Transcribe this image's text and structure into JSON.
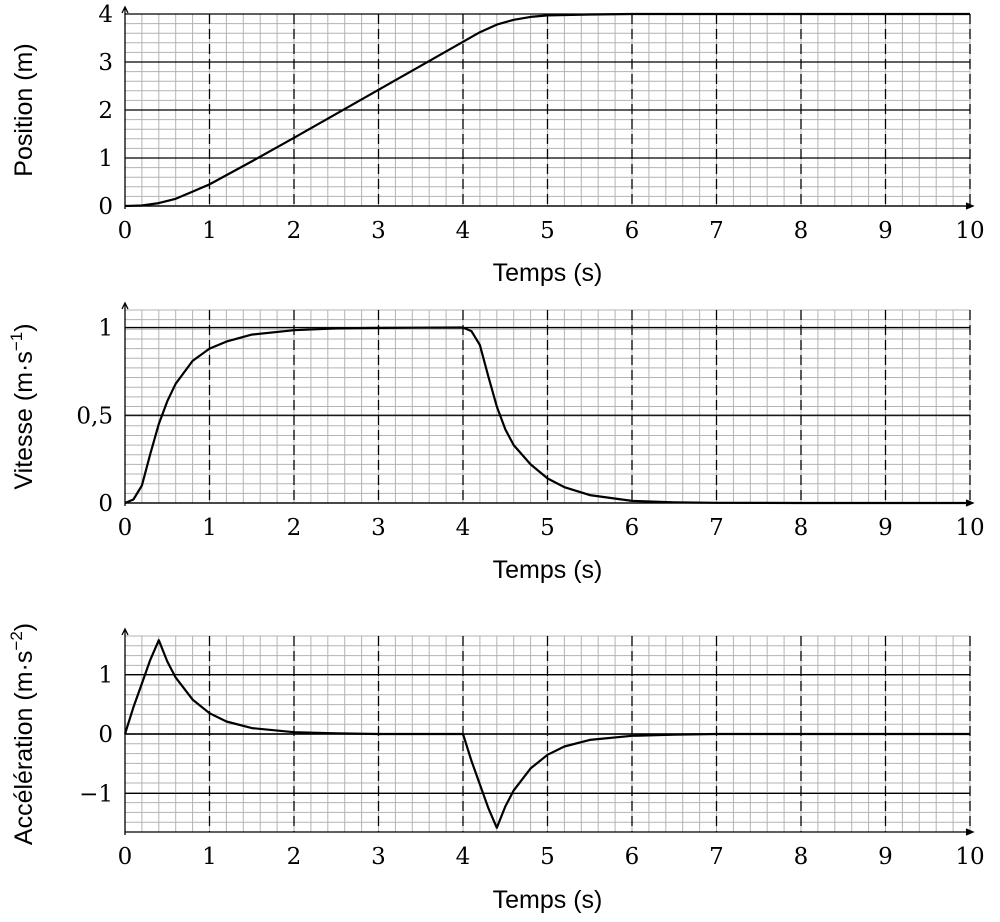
{
  "chart_data": [
    {
      "type": "line",
      "xlabel": "Temps (s)",
      "ylabel": "Position (m)",
      "xlim": [
        0,
        10
      ],
      "ylim": [
        0,
        4
      ],
      "x_ticks": [
        "0",
        "1",
        "2",
        "3",
        "4",
        "5",
        "6",
        "7",
        "8",
        "9",
        "10"
      ],
      "y_ticks": [
        {
          "value": 0,
          "label": "0"
        },
        {
          "value": 1,
          "label": "1"
        },
        {
          "value": 2,
          "label": "2"
        },
        {
          "value": 3,
          "label": "3"
        },
        {
          "value": 4,
          "label": "4"
        }
      ],
      "grid": true,
      "series": [
        {
          "x": [
            0,
            0.2,
            0.4,
            0.6,
            0.8,
            1.0,
            1.5,
            2.0,
            2.5,
            3.0,
            3.5,
            4.0,
            4.2,
            4.4,
            4.6,
            4.8,
            5.0,
            5.5,
            6.0,
            7.0,
            8.0,
            9.0,
            10.0
          ],
          "y": [
            0,
            0.01,
            0.06,
            0.15,
            0.3,
            0.45,
            0.93,
            1.42,
            1.92,
            2.42,
            2.92,
            3.42,
            3.62,
            3.78,
            3.88,
            3.94,
            3.97,
            3.99,
            4.0,
            4.0,
            4.0,
            4.0,
            4.0
          ]
        }
      ]
    },
    {
      "type": "line",
      "xlabel": "Temps (s)",
      "ylabel": "Vitesse (m·s",
      "ylabel_exp": "−1",
      "ylabel_end": ")",
      "xlim": [
        0,
        10
      ],
      "ylim": [
        0,
        1.1
      ],
      "x_ticks": [
        "0",
        "1",
        "2",
        "3",
        "4",
        "5",
        "6",
        "7",
        "8",
        "9",
        "10"
      ],
      "y_ticks": [
        {
          "value": 0,
          "label": "0"
        },
        {
          "value": 0.5,
          "label": "0,5"
        },
        {
          "value": 1,
          "label": "1"
        }
      ],
      "grid": true,
      "series": [
        {
          "x": [
            0,
            0.1,
            0.2,
            0.3,
            0.4,
            0.5,
            0.6,
            0.8,
            1.0,
            1.2,
            1.5,
            2.0,
            2.5,
            3.0,
            3.5,
            4.0,
            4.1,
            4.2,
            4.3,
            4.4,
            4.5,
            4.6,
            4.8,
            5.0,
            5.2,
            5.5,
            6.0,
            6.5,
            7.0,
            8.0,
            9.0,
            10.0
          ],
          "y": [
            0,
            0.02,
            0.1,
            0.28,
            0.45,
            0.58,
            0.68,
            0.81,
            0.88,
            0.92,
            0.96,
            0.985,
            0.995,
            0.998,
            0.999,
            1.0,
            0.98,
            0.9,
            0.72,
            0.55,
            0.42,
            0.33,
            0.22,
            0.14,
            0.09,
            0.045,
            0.012,
            0.004,
            0.001,
            0,
            0,
            0
          ]
        }
      ]
    },
    {
      "type": "line",
      "xlabel": "Temps (s)",
      "ylabel": "Accélération (m·s",
      "ylabel_exp": "−2",
      "ylabel_end": ")",
      "xlim": [
        0,
        10
      ],
      "ylim": [
        -1.65,
        1.65
      ],
      "x_ticks": [
        "0",
        "1",
        "2",
        "3",
        "4",
        "5",
        "6",
        "7",
        "8",
        "9",
        "10"
      ],
      "y_ticks": [
        {
          "value": -1,
          "label": "−1"
        },
        {
          "value": 0,
          "label": "0"
        },
        {
          "value": 1,
          "label": "1"
        }
      ],
      "grid": true,
      "series": [
        {
          "x": [
            0,
            0.1,
            0.2,
            0.3,
            0.4,
            0.5,
            0.6,
            0.8,
            1.0,
            1.2,
            1.5,
            2.0,
            2.5,
            3.0,
            4.0,
            4.1,
            4.2,
            4.3,
            4.4,
            4.5,
            4.6,
            4.8,
            5.0,
            5.2,
            5.5,
            6.0,
            6.5,
            7.0,
            8.0,
            9.0,
            10.0
          ],
          "y": [
            0,
            0.45,
            0.85,
            1.25,
            1.58,
            1.22,
            0.95,
            0.58,
            0.35,
            0.21,
            0.1,
            0.03,
            0.01,
            0,
            0,
            -0.45,
            -0.85,
            -1.25,
            -1.58,
            -1.22,
            -0.95,
            -0.58,
            -0.35,
            -0.21,
            -0.1,
            -0.03,
            -0.01,
            0,
            0,
            0,
            0
          ]
        }
      ]
    }
  ]
}
